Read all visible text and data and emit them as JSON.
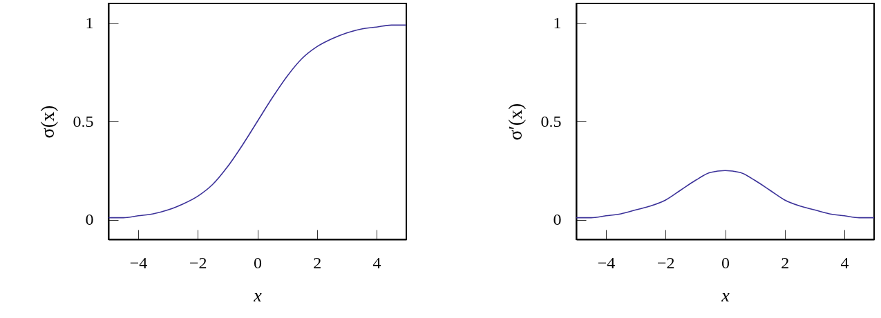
{
  "chart_data": [
    {
      "type": "line",
      "ylabel": "σ(x)",
      "xlabel": "x",
      "x": [
        -5,
        -4.5,
        -4,
        -3.5,
        -3,
        -2.5,
        -2,
        -1.5,
        -1,
        -0.5,
        0,
        0.5,
        1,
        1.5,
        2,
        2.5,
        3,
        3.5,
        4,
        4.5,
        5
      ],
      "series": [
        {
          "color": "#3b3199",
          "values": [
            0.01,
            0.01,
            0.02,
            0.03,
            0.05,
            0.08,
            0.12,
            0.18,
            0.27,
            0.38,
            0.5,
            0.62,
            0.73,
            0.82,
            0.88,
            0.92,
            0.95,
            0.97,
            0.98,
            0.99,
            0.99
          ]
        }
      ],
      "xlim": [
        -5,
        5
      ],
      "xticks": [
        -4,
        -2,
        0,
        2,
        4
      ],
      "ylim": [
        -0.1,
        1.1
      ],
      "yticks": [
        0,
        0.5,
        1
      ],
      "grid": false,
      "legend": false
    },
    {
      "type": "line",
      "ylabel": "σ′(x)",
      "xlabel": "x",
      "x": [
        -5,
        -4.5,
        -4,
        -3.5,
        -3,
        -2.5,
        -2,
        -1.5,
        -1,
        -0.5,
        0,
        0.5,
        1,
        1.5,
        2,
        2.5,
        3,
        3.5,
        4,
        4.5,
        5
      ],
      "series": [
        {
          "color": "#3b3199",
          "values": [
            0.01,
            0.01,
            0.02,
            0.03,
            0.05,
            0.07,
            0.1,
            0.15,
            0.2,
            0.24,
            0.25,
            0.24,
            0.2,
            0.15,
            0.1,
            0.07,
            0.05,
            0.03,
            0.02,
            0.01,
            0.01
          ]
        }
      ],
      "xlim": [
        -5,
        5
      ],
      "xticks": [
        -4,
        -2,
        0,
        2,
        4
      ],
      "ylim": [
        -0.1,
        1.1
      ],
      "yticks": [
        0,
        0.5,
        1
      ],
      "grid": false,
      "legend": false
    }
  ]
}
